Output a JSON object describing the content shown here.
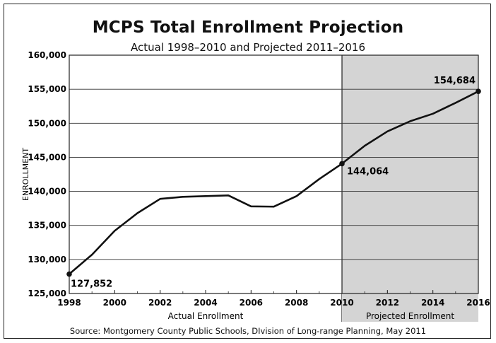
{
  "chart_data": {
    "type": "line",
    "title": "MCPS Total Enrollment Projection",
    "subtitle": "Actual 1998–2010 and Projected 2011–2016",
    "ylabel": "ENROLLMENT",
    "xlabel": "",
    "xlim": [
      1998,
      2016
    ],
    "ylim": [
      125000,
      160000
    ],
    "x_ticks": [
      "1998",
      "2000",
      "2002",
      "2004",
      "2006",
      "2008",
      "2010",
      "2012",
      "2014",
      "2016"
    ],
    "y_ticks": [
      "125,000",
      "130,000",
      "135,000",
      "140,000",
      "145,000",
      "150,000",
      "155,000",
      "160,000"
    ],
    "grid": "horizontal",
    "bands": [
      {
        "label": "Actual Enrollment",
        "from": 1998,
        "to": 2010,
        "shaded": false
      },
      {
        "label": "Projected Enrollment",
        "from": 2010,
        "to": 2016,
        "shaded": true,
        "color": "#d4d4d4"
      }
    ],
    "series": [
      {
        "x": [
          1998,
          1999,
          2000,
          2001,
          2002,
          2003,
          2004,
          2005,
          2006,
          2007,
          2008,
          2009,
          2010,
          2011,
          2012,
          2013,
          2014,
          2015,
          2016
        ],
        "values": [
          127852,
          130700,
          134200,
          136800,
          138900,
          139200,
          139300,
          139400,
          137800,
          137750,
          139300,
          141800,
          144064,
          146700,
          148800,
          150300,
          151400,
          153000,
          154684
        ],
        "color": "#111111"
      }
    ],
    "annotations": [
      {
        "x": 1998,
        "y": 127852,
        "label": "127,852"
      },
      {
        "x": 2010,
        "y": 144064,
        "label": "144,064"
      },
      {
        "x": 2016,
        "y": 154684,
        "label": "154,684"
      }
    ]
  },
  "source": "Source: Montgomery County Public Schools, DIvision of Long-range Planning, May 2011"
}
